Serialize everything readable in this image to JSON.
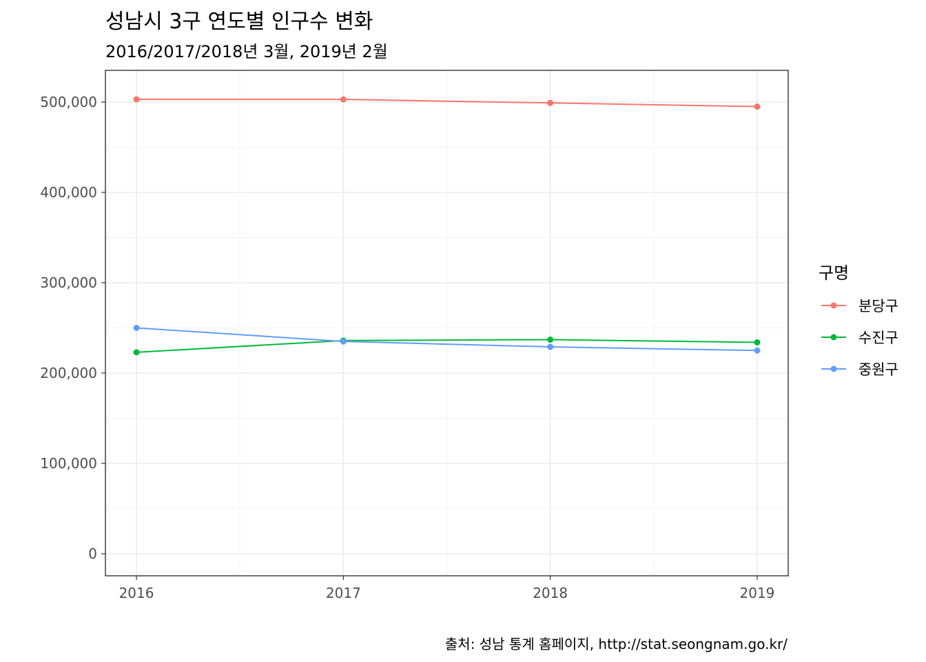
{
  "chart_data": {
    "type": "line",
    "title": "성남시 3구 연도별 인구수 변화",
    "subtitle": "2016/2017/2018년 3월, 2019년 2월",
    "xlabel": "",
    "ylabel": "",
    "x": [
      2016,
      2017,
      2018,
      2019
    ],
    "x_tick_labels": [
      "2016",
      "2017",
      "2018",
      "2019"
    ],
    "ylim": [
      0,
      525000
    ],
    "xlim": [
      2015.85,
      2019.15
    ],
    "y_ticks": [
      0,
      100000,
      200000,
      300000,
      400000,
      500000
    ],
    "y_tick_labels": [
      "0",
      "100,000",
      "200,000",
      "300,000",
      "400,000",
      "500,000"
    ],
    "grid": true,
    "legend_title": "구명",
    "legend_position": "right",
    "caption": "출처: 성남 통계 홈페이지, http://stat.seongnam.go.kr/",
    "series": [
      {
        "name": "분당구",
        "color": "#F8766D",
        "values": [
          503000,
          503000,
          499000,
          495000
        ]
      },
      {
        "name": "수진구",
        "color": "#00BA38",
        "values": [
          223000,
          236000,
          237000,
          234000
        ]
      },
      {
        "name": "중원구",
        "color": "#619CFF",
        "values": [
          250000,
          235000,
          229000,
          225000
        ]
      }
    ]
  }
}
